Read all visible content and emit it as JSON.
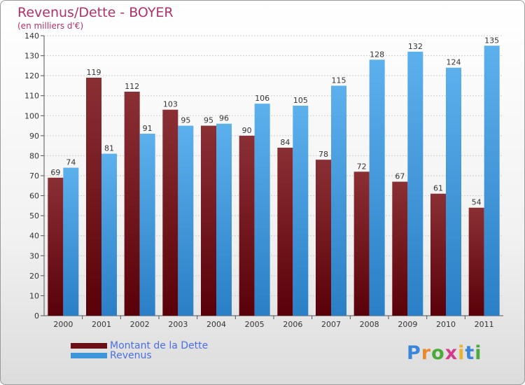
{
  "header": {
    "title": "Revenus/Dette - BOYER",
    "subtitle": "(en milliers d'€)"
  },
  "legend": {
    "items": [
      {
        "label": "Montant de la Dette",
        "color": "#6a0f16"
      },
      {
        "label": "Revenus",
        "color": "#3d95dc"
      }
    ]
  },
  "brand": {
    "letters": [
      "P",
      "r",
      "o",
      "x",
      "i",
      "t",
      "i"
    ],
    "colors": [
      "#3a86d8",
      "#e88a2c",
      "#4caa3c",
      "#d63a8c",
      "#e8b32c",
      "#3a86d8",
      "#4caa3c"
    ]
  },
  "chart_data": {
    "type": "bar",
    "categories": [
      "2000",
      "2001",
      "2002",
      "2003",
      "2004",
      "2005",
      "2006",
      "2007",
      "2008",
      "2009",
      "2010",
      "2011"
    ],
    "series": [
      {
        "name": "Montant de la Dette",
        "values": [
          69,
          119,
          112,
          103,
          95,
          90,
          84,
          78,
          72,
          67,
          61,
          54
        ],
        "color": "#6a0f16"
      },
      {
        "name": "Revenus",
        "values": [
          74,
          81,
          91,
          95,
          96,
          106,
          105,
          115,
          128,
          132,
          124,
          135
        ],
        "color": "#3d95dc"
      }
    ],
    "ylim": [
      0,
      140
    ],
    "yticks": [
      0,
      10,
      20,
      30,
      40,
      50,
      60,
      70,
      80,
      90,
      100,
      110,
      120,
      130,
      140
    ],
    "grid": true,
    "data_labels": true,
    "legend_position": "bottom-left"
  }
}
